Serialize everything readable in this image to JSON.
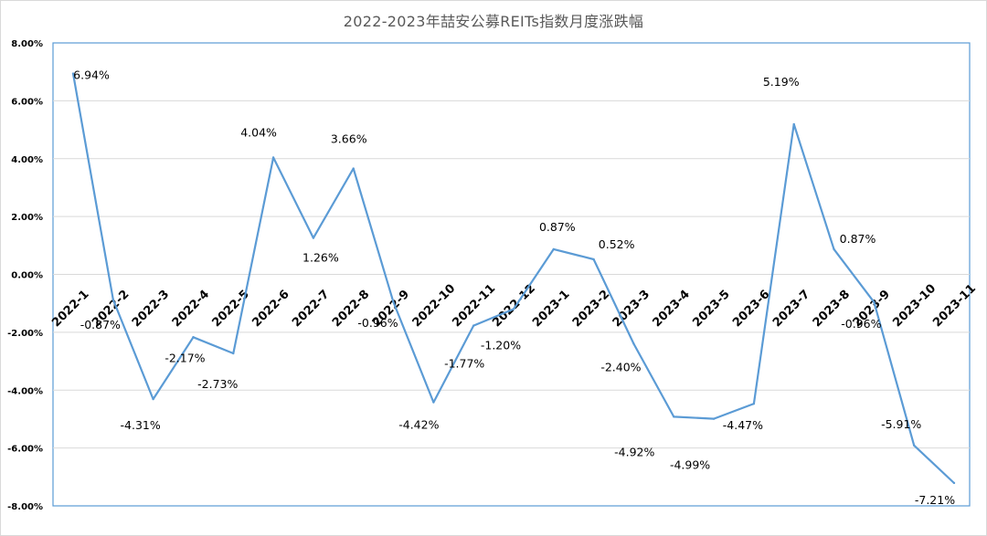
{
  "chart_data": {
    "type": "line",
    "title": "2022-2023年喆安公募REITs指数月度涨跌幅",
    "categories": [
      "2022-1",
      "2022-2",
      "2022-3",
      "2022-4",
      "2022-5",
      "2022-6",
      "2022-7",
      "2022-8",
      "2022-9",
      "2022-10",
      "2022-11",
      "2022-12",
      "2023-1",
      "2023-2",
      "2023-3",
      "2023-4",
      "2023-5",
      "2023-6",
      "2023-7",
      "2023-8",
      "2023-9",
      "2023-10",
      "2023-11"
    ],
    "values": [
      6.94,
      -0.87,
      -4.31,
      -2.17,
      -2.73,
      4.04,
      1.26,
      3.66,
      -0.96,
      -4.42,
      -1.77,
      -1.2,
      0.87,
      0.52,
      -2.4,
      -4.92,
      -4.99,
      -4.47,
      5.19,
      0.87,
      -0.96,
      -5.91,
      -7.21
    ],
    "data_labels": [
      "6.94%",
      "-0.87%",
      "-4.31%",
      "-2.17%",
      "-2.73%",
      "4.04%",
      "1.26%",
      "3.66%",
      "-0.96%",
      "-4.42%",
      "-1.77%",
      "-1.20%",
      "0.87%",
      "0.52%",
      "-2.40%",
      "-4.92%",
      "-4.99%",
      "-4.47%",
      "5.19%",
      "0.87%",
      "-0.96%",
      "-5.91%",
      "-7.21%"
    ],
    "y_ticks": [
      "8.00%",
      "6.00%",
      "4.00%",
      "2.00%",
      "0.00%",
      "-2.00%",
      "-4.00%",
      "-6.00%",
      "-8.00%"
    ],
    "ylim": [
      -8,
      8
    ],
    "grid": true,
    "line_color": "#5b9bd5",
    "grid_color": "#d9d9d9"
  }
}
